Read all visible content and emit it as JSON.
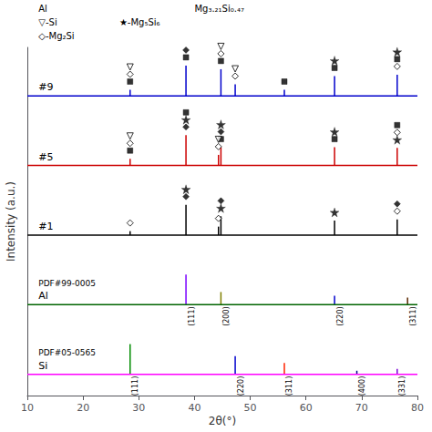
{
  "chart_data": {
    "type": "stem",
    "xlabel": "2θ(°)",
    "ylabel": "Intensity (a.u.)",
    "xlim": [
      10,
      80
    ],
    "xticks": [
      10,
      20,
      30,
      40,
      50,
      60,
      70,
      80
    ],
    "ylim": [
      -0.7,
      1.6
    ],
    "tick_labels": "x",
    "annotations": [
      [
        "Al",
        "Mg₃.₂₁Si₀.₄₇"
      ],
      [
        "▽-Si",
        "★-Mg₅Si₆"
      ],
      [
        "◇-Mg₂Si"
      ]
    ],
    "series": [
      {
        "name": "Si",
        "annotation": "PDF#05-0565",
        "color": "#FF00FF",
        "x": [
          28.44,
          47.3,
          56.12,
          69.13,
          76.37
        ],
        "values": [
          1.0,
          0.6,
          0.38,
          0.12,
          0.18
        ],
        "labels": [
          "(111)",
          "(220)",
          "(311)",
          "(400)",
          "(331)"
        ],
        "colors": [
          "#008B00",
          "#0000CD",
          "#FF2200",
          "#00008B",
          "#7B00D4"
        ]
      },
      {
        "name": "Al",
        "annotation": "PDF#99-0005",
        "color": "#006400",
        "x": [
          38.47,
          44.74,
          65.13,
          78.23
        ],
        "values": [
          1.0,
          0.42,
          0.3,
          0.24
        ],
        "labels": [
          "(111)",
          "(200)",
          "(220)",
          "(311)"
        ],
        "colors": [
          "#7B00FF",
          "#808000",
          "#0000CD",
          "#5B2800"
        ]
      },
      {
        "name": "#1",
        "color": "#000000",
        "x": [
          38.47,
          44.74,
          28.44,
          44.3,
          65.13,
          76.37
        ],
        "values": [
          1.0,
          0.62,
          0.13,
          0.28,
          0.48,
          0.52
        ],
        "markers": [
          [
            "filled_diamond",
            "star"
          ],
          [
            "star",
            "filled_diamond"
          ],
          [
            "open_diamond"
          ],
          [
            "open_diamond"
          ],
          [
            "star"
          ],
          [
            "open_diamond",
            "filled_diamond"
          ]
        ]
      },
      {
        "name": "#5",
        "color": "#CC0000",
        "x": [
          38.47,
          44.74,
          28.44,
          44.3,
          65.13,
          76.37
        ],
        "values": [
          1.0,
          0.6,
          0.22,
          0.35,
          0.6,
          0.58
        ],
        "markers": [
          [
            "filled_diamond",
            "star",
            "filled_square"
          ],
          [
            "filled_square",
            "filled_diamond",
            "star"
          ],
          [
            "filled_square",
            "open_diamond",
            "open_triangle_down"
          ],
          [
            "open_diamond",
            "open_triangle_down"
          ],
          [
            "filled_square",
            "star"
          ],
          [
            "star",
            "open_diamond",
            "filled_square"
          ]
        ]
      },
      {
        "name": "#9",
        "color": "#0000CC",
        "x": [
          38.47,
          44.74,
          28.44,
          47.3,
          56.12,
          65.13,
          76.37
        ],
        "values": [
          1.0,
          0.88,
          0.2,
          0.38,
          0.2,
          0.65,
          0.7
        ],
        "markers": [
          [
            "filled_square",
            "filled_diamond"
          ],
          [
            "filled_square",
            "open_diamond",
            "open_triangle_down"
          ],
          [
            "filled_square",
            "open_diamond",
            "open_triangle_down"
          ],
          [
            "open_diamond",
            "open_triangle_down"
          ],
          [
            "filled_square"
          ],
          [
            "filled_square",
            "star"
          ],
          [
            "open_diamond",
            "filled_square",
            "star"
          ]
        ]
      }
    ]
  }
}
